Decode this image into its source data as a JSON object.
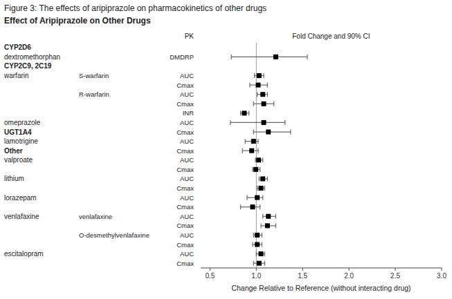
{
  "chart_data": {
    "type": "forest",
    "title": "Figure 3: The effects of aripiprazole on pharmacokinetics of other drugs",
    "subtitle": "Effect of Aripiprazole on Other Drugs",
    "pk_header": "PK",
    "ci_header": "Fold Change and 90% CI",
    "x_label": "Change Relative to Reference (without interacting drug)",
    "xlim": [
      0.4,
      3.0
    ],
    "xticks": [
      0.5,
      {
        "value": 1.0,
        "label": "1.0"
      },
      1.5,
      {
        "value": 2.0,
        "label": "2.0"
      },
      2.5,
      {
        "value": 3.0,
        "label": "3.0"
      }
    ],
    "reference_line": 1.0,
    "drugs": [
      "CYP2D6",
      "dextromethorphan",
      "CYP2C9, 2C19",
      "warfarin",
      null,
      null,
      null,
      null,
      "omeprazole",
      "UGT1A4",
      "lamotrigine",
      "Other",
      "valproate",
      null,
      "lithium",
      null,
      "lorazepam",
      null,
      "venlafaxine",
      null,
      null,
      null,
      "escitalopram",
      null
    ],
    "drug_headings": [
      true,
      false,
      true,
      false,
      false,
      false,
      false,
      false,
      false,
      true,
      false,
      true,
      false,
      false,
      false,
      false,
      false,
      false,
      false,
      false,
      false,
      false,
      false,
      false
    ],
    "metabolites": [
      null,
      null,
      null,
      "S-warfarin",
      null,
      "R-warfarin",
      null,
      null,
      null,
      null,
      null,
      null,
      null,
      null,
      null,
      null,
      null,
      null,
      "venlafaxine",
      null,
      "O-desmethylvenlafaxine",
      null,
      null,
      null
    ],
    "pk": [
      null,
      "DMDRP",
      null,
      "AUC",
      "Cmax",
      "AUC",
      "Cmax",
      "INR",
      "AUC",
      "Cmax",
      "AUC",
      "Cmax",
      "AUC",
      "Cmax",
      "AUC",
      "Cmax",
      "AUC",
      "Cmax",
      "AUC",
      "Cmax",
      "AUC",
      "Cmax",
      "AUC",
      "Cmax"
    ],
    "values": [
      null,
      1.21,
      null,
      1.03,
      1.02,
      1.07,
      1.08,
      0.87,
      1.08,
      1.13,
      0.97,
      0.95,
      1.025,
      0.995,
      1.07,
      1.05,
      1.01,
      0.96,
      1.13,
      1.12,
      1.01,
      1.01,
      1.05,
      1.03
    ],
    "lo": [
      null,
      0.73,
      null,
      0.98,
      0.93,
      1.01,
      0.97,
      0.83,
      0.72,
      0.97,
      0.88,
      0.85,
      0.99,
      0.96,
      1.03,
      1.01,
      0.9,
      0.83,
      1.07,
      1.05,
      0.97,
      0.96,
      1.0,
      0.97
    ],
    "hi": [
      null,
      1.55,
      null,
      1.08,
      1.12,
      1.12,
      1.19,
      0.92,
      1.31,
      1.37,
      1.02,
      1.02,
      1.07,
      1.04,
      1.12,
      1.09,
      1.07,
      1.04,
      1.21,
      1.21,
      1.06,
      1.06,
      1.09,
      1.09
    ]
  }
}
